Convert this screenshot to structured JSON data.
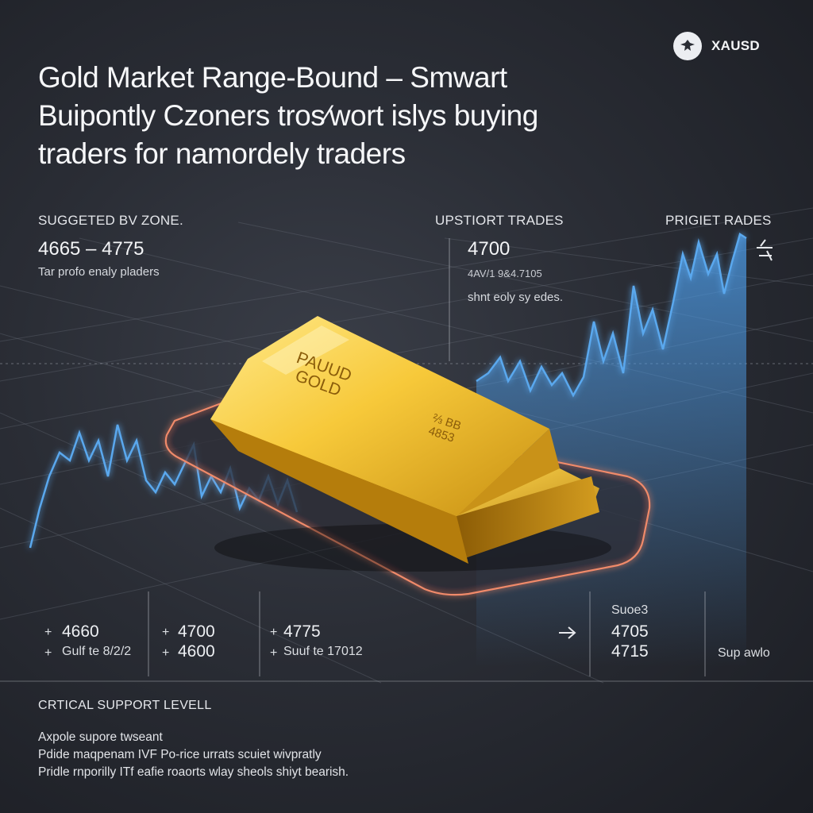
{
  "brand": {
    "name": "XAUSD",
    "logo_icon": "eagle-icon"
  },
  "headline": {
    "lines": [
      "Gold Market Range-Bound – Smwart",
      "Buipontly Czoners tros⁄wort islys buying",
      "traders for namordely traders"
    ]
  },
  "top_panels": {
    "left": {
      "label": "SUGGETED BV ZONE.",
      "value": "4665 – 4775",
      "note": "Tar profo enaly pladers"
    },
    "middle": {
      "label": "UPSTIORT TRADES",
      "value": "4700",
      "sub": "4AV/1 9&4.7105",
      "note": "shnt eoly sy edes."
    },
    "right": {
      "label": "PRIGIET RADES"
    }
  },
  "gold_bar": {
    "line1": "PAUUD",
    "line2": "GOLD",
    "stamp1": "⅔ BB",
    "stamp2": "4853"
  },
  "bottom_columns": [
    {
      "mark1": "+",
      "value": "4660",
      "mark2": "+",
      "sub": "Gulf te 8/2/2"
    },
    {
      "mark1": "+",
      "value": "4700",
      "mark2": "+",
      "sub": "4600"
    },
    {
      "mark1": "+",
      "value": "4775",
      "mark2": "+",
      "sub": "Suuf te 17012"
    },
    {
      "label": "Suoe3",
      "value1": "4705",
      "value2": "4715"
    },
    {
      "sub": "Sup awlo"
    }
  ],
  "critical": {
    "title": "CRTICAL SUPPORT LEVELL",
    "lines": [
      "Axpole supore twseant",
      "Pdide maqpenam IVF Po-rice urrats scuiet wivpratly",
      "Pridle rnporilly ITf eafie roaorts wlay sheols shiyt bearish."
    ]
  },
  "colors": {
    "background": "#24272e",
    "gold": "#e6b422",
    "chart_line": "#5aa8ee",
    "zone_glow": "#f08a6a"
  }
}
